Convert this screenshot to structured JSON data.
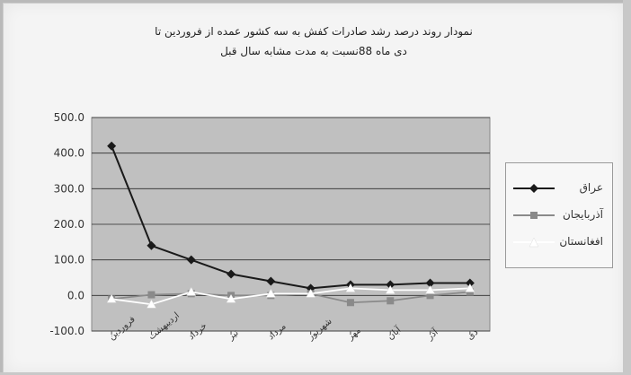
{
  "chart_data": {
    "type": "line",
    "title_lines": [
      "نمودار روند درصد رشد صادرات کفش به سه کشور عمده از فروردین تا",
      "دی ماه 88نسبت به مدت مشابه سال قبل"
    ],
    "categories": [
      "فروردین",
      "اردیبهشت",
      "خرداد",
      "تیر",
      "مرداد",
      "شهریور",
      "مهر",
      "آبان",
      "آذر",
      "دی"
    ],
    "yticks": [
      "500.0",
      "400.0",
      "300.0",
      "200.0",
      "100.0",
      "0.0",
      "-100.0"
    ],
    "ylim": [
      -100,
      500
    ],
    "grid": true,
    "legend_position": "right",
    "plot_background": "#c0c0c0",
    "series": [
      {
        "name": "عراق",
        "color": "#1a1a1a",
        "marker": "diamond",
        "values": [
          420,
          140,
          100,
          60,
          40,
          20,
          30,
          30,
          35,
          35
        ]
      },
      {
        "name": "آذربایجان",
        "color": "#8a8a8a",
        "marker": "square",
        "values": [
          -10,
          2,
          5,
          0,
          0,
          5,
          -20,
          -15,
          0,
          10
        ]
      },
      {
        "name": "افغانستان",
        "color": "#ffffff",
        "marker": "triangle",
        "values": [
          -10,
          -25,
          10,
          -10,
          5,
          5,
          20,
          15,
          15,
          20
        ]
      }
    ]
  }
}
